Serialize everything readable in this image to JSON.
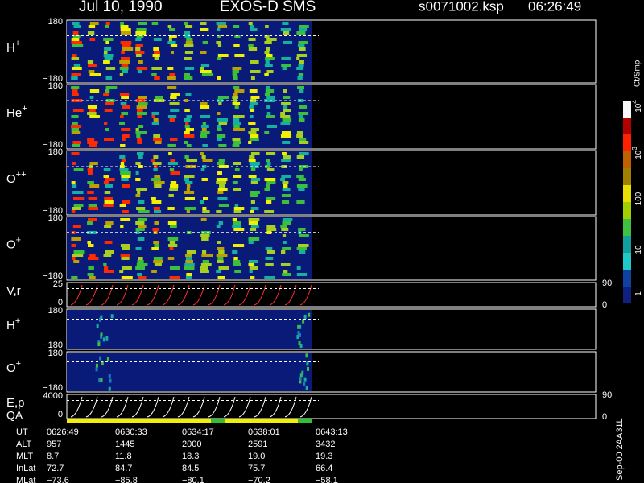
{
  "header": {
    "date": "Jul 10, 1990",
    "instrument": "EXOS-D SMS",
    "file": "s0071002.ksp",
    "time": "06:26:49"
  },
  "panels": [
    {
      "label": "H",
      "sup": "+",
      "top": "180",
      "bottom": "−180"
    },
    {
      "label": "He",
      "sup": "+",
      "top": "180",
      "bottom": "−180"
    },
    {
      "label": "O",
      "sup": "++",
      "top": "180",
      "bottom": "−180"
    },
    {
      "label": "O",
      "sup": "+",
      "top": "180",
      "bottom": "−180"
    },
    {
      "label": "V,r",
      "top": "25",
      "bottom": "0",
      "right": [
        "90",
        "0"
      ]
    },
    {
      "label": "H",
      "sup": "+",
      "top": "180",
      "bottom": "−180"
    },
    {
      "label": "O",
      "sup": "+",
      "top": "180",
      "bottom": "−180"
    },
    {
      "label": "E,p",
      "top": "4000",
      "bottom": "0",
      "right": [
        "90",
        "0"
      ]
    }
  ],
  "qa_label": "QA",
  "colorbar": {
    "unit": "Ct/Smp",
    "labels": [
      {
        "base": "10",
        "exp": "4"
      },
      {
        "base": "10",
        "exp": "3"
      },
      {
        "base": "100"
      },
      {
        "base": "10"
      },
      {
        "base": "1"
      }
    ]
  },
  "footer": {
    "rows": [
      [
        "UT",
        "0626:49",
        "0630:33",
        "0634:17",
        "0638:01",
        "0643:13"
      ],
      [
        "ALT",
        "957",
        "1445",
        "2000",
        "2591",
        "3432"
      ],
      [
        "MLT",
        "8.7",
        "11.8",
        "18.3",
        "19.0",
        "19.3"
      ],
      [
        "InLat",
        "72.7",
        "84.7",
        "84.5",
        "75.7",
        "66.4"
      ],
      [
        "MLat",
        "−73.6",
        "−85.8",
        "−80.1",
        "−70.2",
        "−58.1"
      ]
    ]
  },
  "side_note": "Sep-00 2AA31L"
}
